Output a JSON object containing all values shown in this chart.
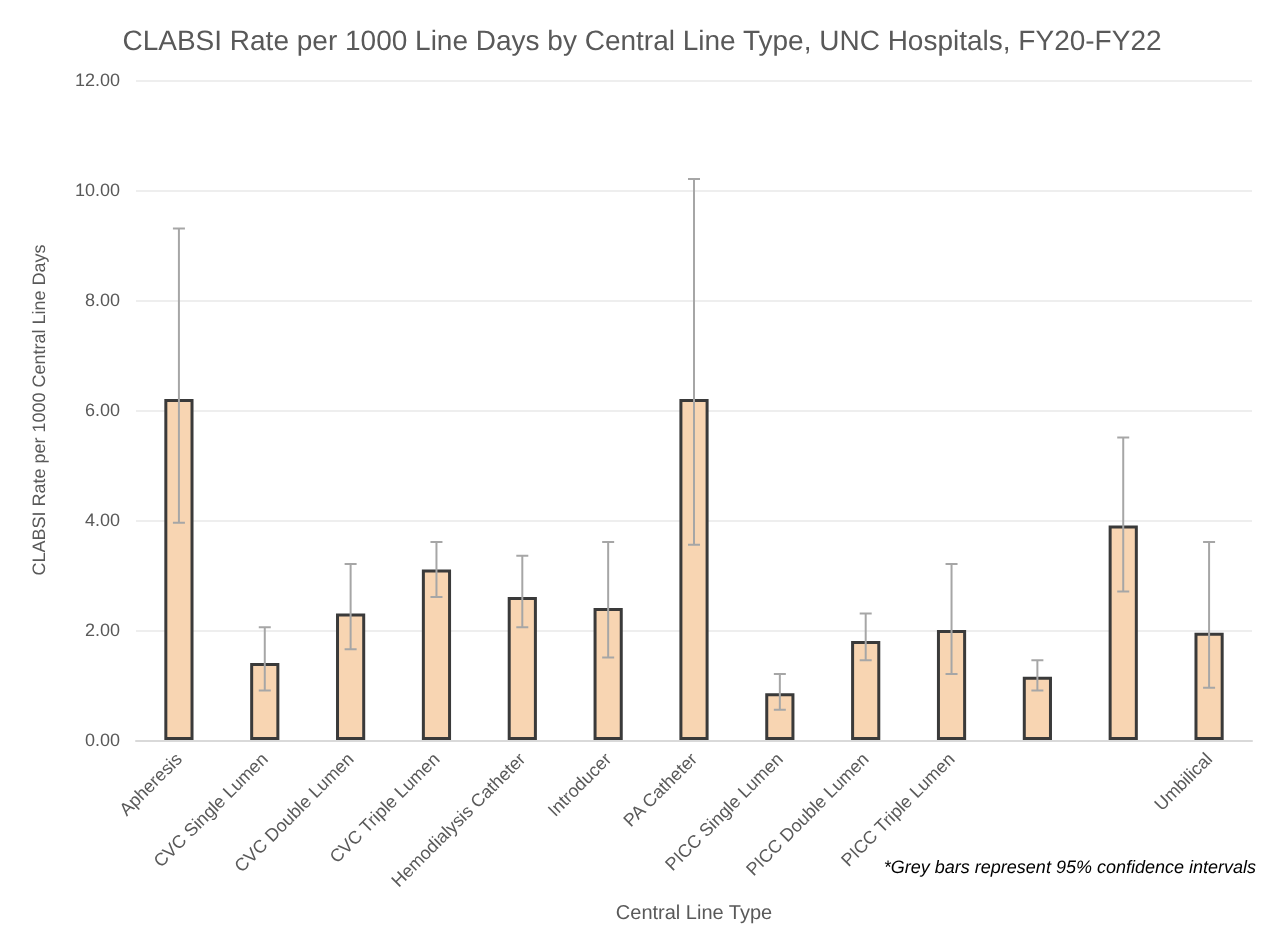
{
  "chart_data": {
    "type": "bar",
    "title": "CLABSI Rate per 1000 Line Days by Central Line Type, UNC Hospitals, FY20-FY22",
    "xlabel": "Central Line Type",
    "ylabel": "CLABSI Rate per 1000 Central Line Days",
    "categories": [
      "Apheresis",
      "CVC Single Lumen",
      "CVC Double Lumen",
      "CVC Triple Lumen",
      "Hemodialysis Catheter",
      "Introducer",
      "PA Catheter",
      "PICC Single Lumen",
      "PICC Double Lumen",
      "PICC Triple Lumen",
      null,
      null,
      "Umbilical"
    ],
    "values": [
      6.2,
      1.4,
      2.3,
      3.1,
      2.6,
      2.4,
      6.2,
      0.85,
      1.8,
      2.0,
      1.15,
      3.9,
      1.95
    ],
    "errors": [
      [
        3.95,
        9.3
      ],
      [
        0.9,
        2.05
      ],
      [
        1.65,
        3.2
      ],
      [
        2.6,
        3.6
      ],
      [
        2.05,
        3.35
      ],
      [
        1.5,
        3.6
      ],
      [
        3.55,
        10.2
      ],
      [
        0.55,
        1.2
      ],
      [
        1.45,
        2.3
      ],
      [
        1.2,
        3.2
      ],
      [
        0.9,
        1.45
      ],
      [
        2.7,
        5.5
      ],
      [
        0.95,
        3.6
      ]
    ],
    "color": "#f8d5b2",
    "ylim": [
      0,
      12
    ],
    "yticks": [
      {
        "value": 0,
        "label": "0.00"
      },
      {
        "value": 2,
        "label": "2.00"
      },
      {
        "value": 4,
        "label": "4.00"
      },
      {
        "value": 6,
        "label": "6.00"
      },
      {
        "value": 8,
        "label": "8.00"
      },
      {
        "value": 10,
        "label": "10.00"
      },
      {
        "value": 12,
        "label": "12.00"
      }
    ],
    "grid": "y",
    "annotations": [
      "*Grey bars represent 95% confidence intervals"
    ]
  }
}
